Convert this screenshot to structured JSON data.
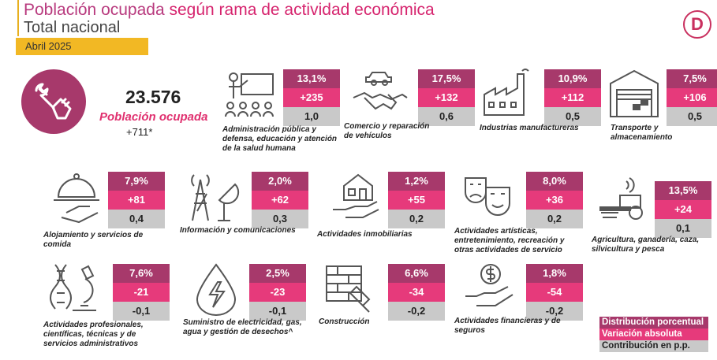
{
  "header": {
    "title_part1": "Población",
    "title_part2": "ocupada",
    "title_part3": "según rama de actividad económica",
    "subtitle": "Total nacional",
    "date": "Abril 2025",
    "logo_letter": "D"
  },
  "summary": {
    "value": "23.576",
    "label": "Población ocupada",
    "variation": "+711*"
  },
  "sectors": [
    {
      "label": "Administración pública y defensa, educación y atención de la salud humana",
      "pct": "13,1%",
      "abs": "+235",
      "pp": "1,0",
      "icon": "teacher-icon"
    },
    {
      "label": "Comercio y reparación de vehículos",
      "pct": "17,5%",
      "abs": "+132",
      "pp": "0,6",
      "icon": "handshake-car-icon"
    },
    {
      "label": "Industrias manufactureras",
      "pct": "10,9%",
      "abs": "+112",
      "pp": "0,5",
      "icon": "factory-icon"
    },
    {
      "label": "Transporte y almacenamiento",
      "pct": "7,5%",
      "abs": "+106",
      "pp": "0,5",
      "icon": "warehouse-icon"
    },
    {
      "label": "Alojamiento y servicios de comida",
      "pct": "7,9%",
      "abs": "+81",
      "pp": "0,4",
      "icon": "cloche-icon"
    },
    {
      "label": "Información y comunicaciones",
      "pct": "2,0%",
      "abs": "+62",
      "pp": "0,3",
      "icon": "antenna-icon"
    },
    {
      "label": "Actividades inmobiliarias",
      "pct": "1,2%",
      "abs": "+55",
      "pp": "0,2",
      "icon": "house-hand-icon"
    },
    {
      "label": "Actividades artísticas, entretenimiento, recreación y otras actividades de servicio",
      "pct": "8,0%",
      "abs": "+36",
      "pp": "0,2",
      "icon": "theater-masks-icon"
    },
    {
      "label": "Agricultura, ganadería, caza, silvicultura y pesca",
      "pct": "13,5%",
      "abs": "+24",
      "pp": "0,1",
      "icon": "tractor-icon"
    },
    {
      "label": "Actividades profesionales, científicas, técnicas y de servicios administrativos",
      "pct": "7,6%",
      "abs": "-21",
      "pp": "-0,1",
      "icon": "microscope-dna-icon"
    },
    {
      "label": "Suministro de electricidad, gas, agua y gestión de desechos^",
      "pct": "2,5%",
      "abs": "-23",
      "pp": "-0,1",
      "icon": "energy-drop-icon"
    },
    {
      "label": "Construcción",
      "pct": "6,6%",
      "abs": "-34",
      "pp": "-0,2",
      "icon": "bricks-trowel-icon"
    },
    {
      "label": "Actividades financieras y de seguros",
      "pct": "1,8%",
      "abs": "-54",
      "pp": "-0,2",
      "icon": "money-hand-icon"
    }
  ],
  "legend": {
    "pct": "Distribución porcentual",
    "abs": "Variación absoluta",
    "pp": "Contribución en p.p."
  },
  "colors": {
    "distribution": "#a7396b",
    "variation": "#e63a7b",
    "contribution": "#c9c9c9",
    "accent": "#f2b824"
  }
}
